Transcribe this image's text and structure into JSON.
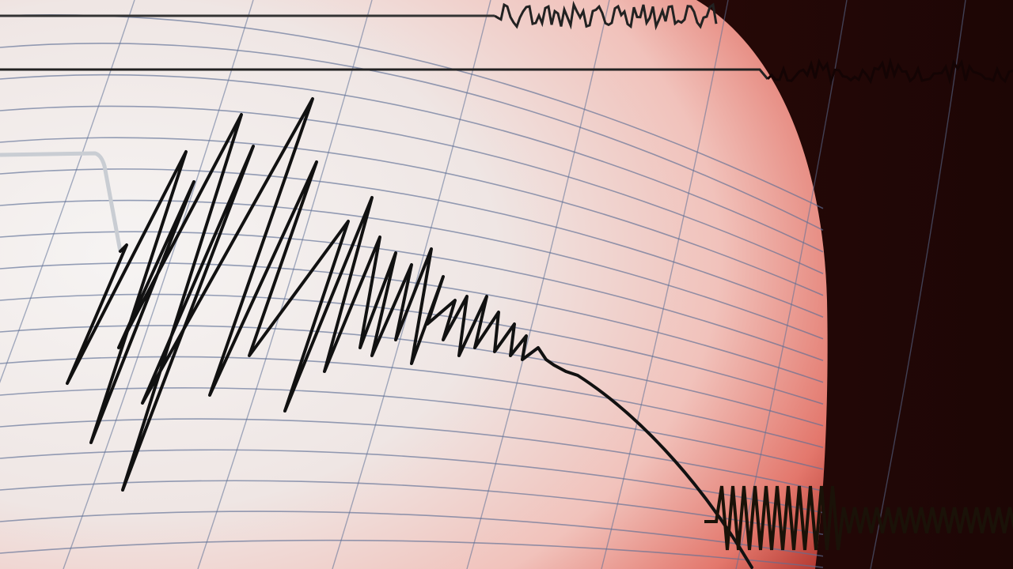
{
  "scene": {
    "subject": "seismograph",
    "colors": {
      "paper_light": "#f4f1f0",
      "paper_pink": "#f3b5ad",
      "paper_red_edge": "#d9534a",
      "background_dark": "#2a0908",
      "grid_line": "#5d6f95",
      "trace": "#111111",
      "arm": "#c9cdd3"
    }
  }
}
